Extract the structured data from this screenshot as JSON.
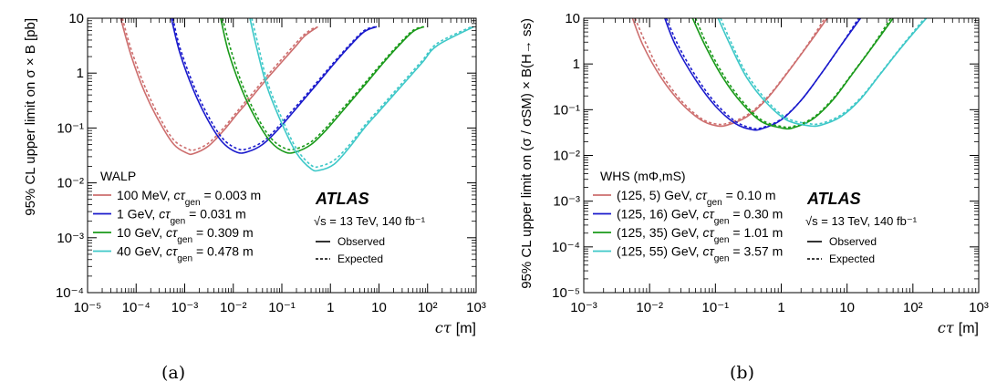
{
  "captions": [
    "(a)",
    "(b)"
  ],
  "chart_data": [
    {
      "type": "line",
      "xlabel": "cτ [m]",
      "ylabel": "95% CL upper limit on σ × B [pb]",
      "xscale": "log",
      "yscale": "log",
      "xlim": [
        1e-05,
        1000
      ],
      "ylim": [
        0.0001,
        10
      ],
      "xticks": [
        1e-05,
        0.0001,
        0.001,
        0.01,
        0.1,
        1,
        10,
        100,
        1000
      ],
      "xtick_labels": [
        "10⁻⁵",
        "10⁻⁴",
        "10⁻³",
        "10⁻²",
        "10⁻¹",
        "1",
        "10",
        "10²",
        "10³"
      ],
      "yticks": [
        0.0001,
        0.001,
        0.01,
        0.1,
        1,
        10
      ],
      "ytick_labels": [
        "10⁻⁴",
        "10⁻³",
        "10⁻²",
        "10⁻¹",
        "1",
        "10"
      ],
      "legend_title": "WALP",
      "legend_placement": "lower-left",
      "experiment_label": "ATLAS",
      "energy_label": "√s = 13 TeV, 140 fb⁻¹",
      "style_legend": [
        "Observed",
        "Expected"
      ],
      "series": [
        {
          "name": "100 MeV, cτgen = 0.003 m",
          "color": "#cd6e6e",
          "observed": {
            "x": [
              4.8e-05,
              8e-05,
              0.00015,
              0.0003,
              0.0006,
              0.0011,
              0.0015,
              0.003,
              0.006,
              0.012,
              0.025,
              0.05,
              0.1,
              0.2,
              0.3,
              0.55
            ],
            "y": [
              10,
              2.0,
              0.45,
              0.13,
              0.05,
              0.035,
              0.034,
              0.046,
              0.085,
              0.18,
              0.38,
              0.8,
              1.6,
              3.2,
              4.8,
              7
            ]
          },
          "expected": {
            "x": [
              5.2e-05,
              8e-05,
              0.00015,
              0.0003,
              0.0006,
              0.0012,
              0.0016,
              0.003,
              0.006,
              0.012,
              0.025,
              0.05,
              0.1,
              0.2,
              0.3,
              0.5
            ],
            "y": [
              10,
              2.6,
              0.58,
              0.16,
              0.06,
              0.041,
              0.04,
              0.052,
              0.095,
              0.2,
              0.43,
              0.9,
              1.8,
              3.6,
              5.2,
              7
            ]
          }
        },
        {
          "name": "1 GeV, cτgen = 0.031 m",
          "color": "#1a1acc",
          "observed": {
            "x": [
              0.00053,
              0.0008,
              0.0015,
              0.003,
              0.006,
              0.012,
              0.02,
              0.04,
              0.08,
              0.15,
              0.3,
              0.6,
              1.2,
              2.5,
              5,
              9
            ],
            "y": [
              10,
              2.3,
              0.5,
              0.14,
              0.055,
              0.036,
              0.037,
              0.05,
              0.09,
              0.17,
              0.35,
              0.72,
              1.5,
              3.1,
              5.7,
              7
            ]
          },
          "expected": {
            "x": [
              0.00057,
              0.0008,
              0.0015,
              0.003,
              0.006,
              0.012,
              0.02,
              0.04,
              0.08,
              0.15,
              0.3,
              0.6,
              1.2,
              2.5,
              5,
              8.5
            ],
            "y": [
              10,
              2.9,
              0.62,
              0.17,
              0.065,
              0.042,
              0.042,
              0.056,
              0.1,
              0.19,
              0.38,
              0.78,
              1.6,
              3.3,
              6.0,
              7
            ]
          }
        },
        {
          "name": "10 GeV, cτgen = 0.309 m",
          "color": "#1a9a1a",
          "observed": {
            "x": [
              0.0055,
              0.008,
              0.015,
              0.03,
              0.06,
              0.12,
              0.2,
              0.4,
              0.8,
              1.5,
              3,
              6,
              12,
              25,
              50,
              85
            ],
            "y": [
              10,
              2.4,
              0.5,
              0.14,
              0.055,
              0.036,
              0.037,
              0.05,
              0.09,
              0.17,
              0.35,
              0.72,
              1.5,
              3.1,
              5.7,
              7
            ]
          },
          "expected": {
            "x": [
              0.006,
              0.009,
              0.015,
              0.03,
              0.06,
              0.12,
              0.2,
              0.4,
              0.8,
              1.5,
              3,
              6,
              12,
              25,
              50,
              82
            ],
            "y": [
              10,
              2.6,
              0.65,
              0.17,
              0.065,
              0.042,
              0.042,
              0.056,
              0.1,
              0.19,
              0.38,
              0.78,
              1.6,
              3.3,
              6.0,
              7
            ]
          }
        },
        {
          "name": "40 GeV, cτgen = 0.478 m",
          "color": "#3ec8c8",
          "observed": {
            "x": [
              0.022,
              0.03,
              0.05,
              0.1,
              0.2,
              0.4,
              0.6,
              1.2,
              2.5,
              5,
              10,
              20,
              40,
              80,
              160,
              900
            ],
            "y": [
              10,
              3.0,
              0.55,
              0.12,
              0.035,
              0.018,
              0.017,
              0.022,
              0.045,
              0.1,
              0.2,
              0.4,
              0.8,
              1.6,
              3.2,
              7
            ]
          },
          "expected": {
            "x": [
              0.024,
              0.032,
              0.05,
              0.1,
              0.2,
              0.4,
              0.6,
              1.2,
              2.5,
              5,
              10,
              20,
              40,
              80,
              160,
              800
            ],
            "y": [
              10,
              3.5,
              0.7,
              0.15,
              0.042,
              0.021,
              0.02,
              0.026,
              0.05,
              0.11,
              0.22,
              0.44,
              0.88,
              1.75,
              3.5,
              7
            ]
          }
        }
      ]
    },
    {
      "type": "line",
      "xlabel": "cτ [m]",
      "ylabel": "95% CL upper limit on (σ / σSM) × B(H→ ss)",
      "xscale": "log",
      "yscale": "log",
      "xlim": [
        0.001,
        1000
      ],
      "ylim": [
        1e-05,
        10
      ],
      "xticks": [
        0.001,
        0.01,
        0.1,
        1,
        10,
        100,
        1000
      ],
      "xtick_labels": [
        "10⁻³",
        "10⁻²",
        "10⁻¹",
        "1",
        "10",
        "10²",
        "10³"
      ],
      "yticks": [
        1e-05,
        0.0001,
        0.001,
        0.01,
        0.1,
        1,
        10
      ],
      "ytick_labels": [
        "10⁻⁵",
        "10⁻⁴",
        "10⁻³",
        "10⁻²",
        "10⁻¹",
        "1",
        "10"
      ],
      "legend_title": "WHS (mΦ,mS)",
      "legend_placement": "lower-left",
      "experiment_label": "ATLAS",
      "energy_label": "√s = 13 TeV, 140 fb⁻¹",
      "style_legend": [
        "Observed",
        "Expected"
      ],
      "series": [
        {
          "name": "(125, 5) GeV, cτgen = 0.10 m",
          "color": "#cd6e6e",
          "observed": {
            "x": [
              0.0055,
              0.008,
              0.015,
              0.03,
              0.06,
              0.1,
              0.15,
              0.3,
              0.6,
              1.2,
              2.5,
              5
            ],
            "y": [
              10,
              2.5,
              0.5,
              0.14,
              0.06,
              0.045,
              0.046,
              0.07,
              0.17,
              0.6,
              2.5,
              10
            ]
          },
          "expected": {
            "x": [
              0.006,
              0.009,
              0.015,
              0.03,
              0.06,
              0.1,
              0.15,
              0.3,
              0.6,
              1.2,
              2.5,
              4.6
            ],
            "y": [
              10,
              2.6,
              0.62,
              0.16,
              0.065,
              0.049,
              0.05,
              0.076,
              0.18,
              0.62,
              2.6,
              10
            ]
          }
        },
        {
          "name": "(125, 16) GeV, cτgen = 0.30 m",
          "color": "#1a1acc",
          "observed": {
            "x": [
              0.017,
              0.025,
              0.05,
              0.1,
              0.2,
              0.35,
              0.5,
              1,
              2,
              4,
              8,
              16
            ],
            "y": [
              10,
              2.5,
              0.45,
              0.12,
              0.05,
              0.037,
              0.038,
              0.06,
              0.16,
              0.6,
              2.5,
              10
            ]
          },
          "expected": {
            "x": [
              0.018,
              0.027,
              0.05,
              0.1,
              0.2,
              0.35,
              0.5,
              1,
              2,
              4,
              8,
              15
            ],
            "y": [
              10,
              2.6,
              0.55,
              0.14,
              0.056,
              0.04,
              0.04,
              0.062,
              0.16,
              0.6,
              2.5,
              10
            ]
          }
        },
        {
          "name": "(125, 35) GeV, cτgen = 1.01 m",
          "color": "#1a9a1a",
          "observed": {
            "x": [
              0.045,
              0.07,
              0.13,
              0.25,
              0.5,
              1,
              1.5,
              3,
              6,
              12,
              25,
              50
            ],
            "y": [
              10,
              2.5,
              0.5,
              0.14,
              0.055,
              0.04,
              0.04,
              0.062,
              0.16,
              0.6,
              2.5,
              10
            ]
          },
          "expected": {
            "x": [
              0.05,
              0.075,
              0.13,
              0.25,
              0.5,
              1,
              1.5,
              3,
              6,
              12,
              25,
              46
            ],
            "y": [
              10,
              2.6,
              0.6,
              0.16,
              0.06,
              0.043,
              0.043,
              0.066,
              0.17,
              0.62,
              2.6,
              10
            ]
          }
        },
        {
          "name": "(125, 55) GeV, cτgen = 3.57 m",
          "color": "#3ec8c8",
          "observed": {
            "x": [
              0.11,
              0.17,
              0.3,
              0.6,
              1.2,
              2.5,
              4,
              8,
              16,
              32,
              70,
              160
            ],
            "y": [
              10,
              2.5,
              0.5,
              0.14,
              0.06,
              0.045,
              0.046,
              0.07,
              0.17,
              0.6,
              2.5,
              10
            ]
          },
          "expected": {
            "x": [
              0.12,
              0.18,
              0.3,
              0.6,
              1.2,
              2.5,
              4,
              8,
              16,
              32,
              70,
              150
            ],
            "y": [
              10,
              2.6,
              0.6,
              0.16,
              0.066,
              0.05,
              0.05,
              0.076,
              0.18,
              0.62,
              2.6,
              10
            ]
          }
        }
      ]
    }
  ]
}
